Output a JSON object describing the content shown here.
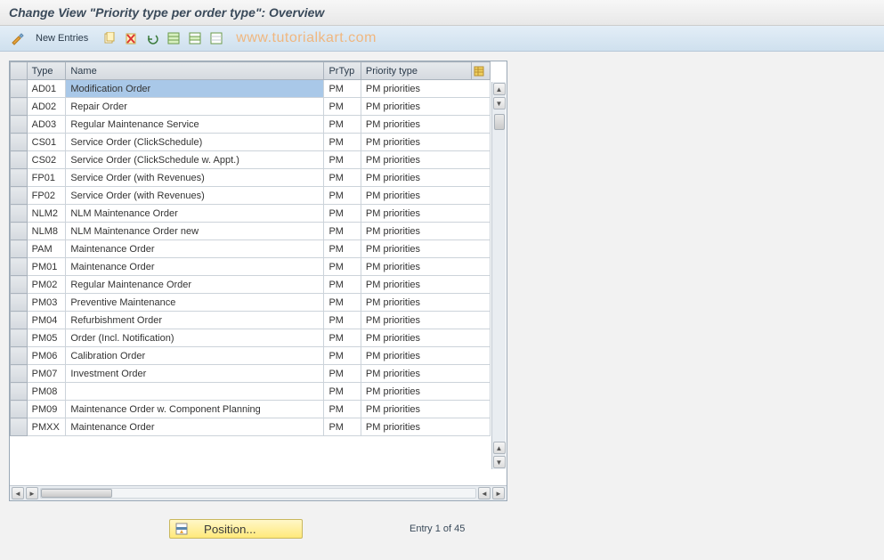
{
  "title": "Change View \"Priority type per order type\": Overview",
  "watermark": "www.tutorialkart.com",
  "toolbar": {
    "new_entries_label": "New Entries",
    "icons": [
      {
        "name": "toggle-icon",
        "glyph": "wand"
      },
      {
        "name": "copy-icon",
        "glyph": "copy"
      },
      {
        "name": "delete-icon",
        "glyph": "delete"
      },
      {
        "name": "undo-icon",
        "glyph": "undo"
      },
      {
        "name": "select-all-icon",
        "glyph": "selectall"
      },
      {
        "name": "select-block-icon",
        "glyph": "selectblock"
      },
      {
        "name": "deselect-all-icon",
        "glyph": "deselect"
      }
    ]
  },
  "table": {
    "columns": {
      "type": "Type",
      "name": "Name",
      "prtyp": "PrTyp",
      "priority_type": "Priority type"
    },
    "selected_row_index": 0,
    "rows": [
      {
        "type": "AD01",
        "name": "Modification Order",
        "prtyp": "PM",
        "ptlabel": "PM priorities"
      },
      {
        "type": "AD02",
        "name": "Repair Order",
        "prtyp": "PM",
        "ptlabel": "PM priorities"
      },
      {
        "type": "AD03",
        "name": "Regular Maintenance Service",
        "prtyp": "PM",
        "ptlabel": "PM priorities"
      },
      {
        "type": "CS01",
        "name": "Service Order (ClickSchedule)",
        "prtyp": "PM",
        "ptlabel": "PM priorities"
      },
      {
        "type": "CS02",
        "name": "Service Order (ClickSchedule w. Appt.)",
        "prtyp": "PM",
        "ptlabel": "PM priorities"
      },
      {
        "type": "FP01",
        "name": "Service Order (with Revenues)",
        "prtyp": "PM",
        "ptlabel": "PM priorities"
      },
      {
        "type": "FP02",
        "name": "Service Order (with Revenues)",
        "prtyp": "PM",
        "ptlabel": "PM priorities"
      },
      {
        "type": "NLM2",
        "name": "NLM Maintenance Order",
        "prtyp": "PM",
        "ptlabel": "PM priorities"
      },
      {
        "type": "NLM8",
        "name": "NLM Maintenance Order new",
        "prtyp": "PM",
        "ptlabel": "PM priorities"
      },
      {
        "type": "PAM",
        "name": "Maintenance Order",
        "prtyp": "PM",
        "ptlabel": "PM priorities"
      },
      {
        "type": "PM01",
        "name": "Maintenance Order",
        "prtyp": "PM",
        "ptlabel": "PM priorities"
      },
      {
        "type": "PM02",
        "name": "Regular Maintenance Order",
        "prtyp": "PM",
        "ptlabel": "PM priorities"
      },
      {
        "type": "PM03",
        "name": "Preventive Maintenance",
        "prtyp": "PM",
        "ptlabel": "PM priorities"
      },
      {
        "type": "PM04",
        "name": "Refurbishment Order",
        "prtyp": "PM",
        "ptlabel": "PM priorities"
      },
      {
        "type": "PM05",
        "name": "Order (Incl. Notification)",
        "prtyp": "PM",
        "ptlabel": "PM priorities"
      },
      {
        "type": "PM06",
        "name": "Calibration Order",
        "prtyp": "PM",
        "ptlabel": "PM priorities"
      },
      {
        "type": "PM07",
        "name": "Investment Order",
        "prtyp": "PM",
        "ptlabel": "PM priorities"
      },
      {
        "type": "PM08",
        "name": "",
        "prtyp": "PM",
        "ptlabel": "PM priorities"
      },
      {
        "type": "PM09",
        "name": "Maintenance Order w. Component Planning",
        "prtyp": "PM",
        "ptlabel": "PM priorities"
      },
      {
        "type": "PMXX",
        "name": "Maintenance Order",
        "prtyp": "PM",
        "ptlabel": "PM priorities"
      }
    ]
  },
  "footer": {
    "position_label": "Position...",
    "entry_status": "Entry 1 of 45"
  },
  "colors": {
    "header_bg_top": "#e3eef7",
    "header_bg_bottom": "#cfe0ee",
    "selection": "#a9c8e8",
    "button_yellow_top": "#fff7c8",
    "button_yellow_bottom": "#ffe97a",
    "watermark": "rgba(255,150,50,0.6)"
  }
}
